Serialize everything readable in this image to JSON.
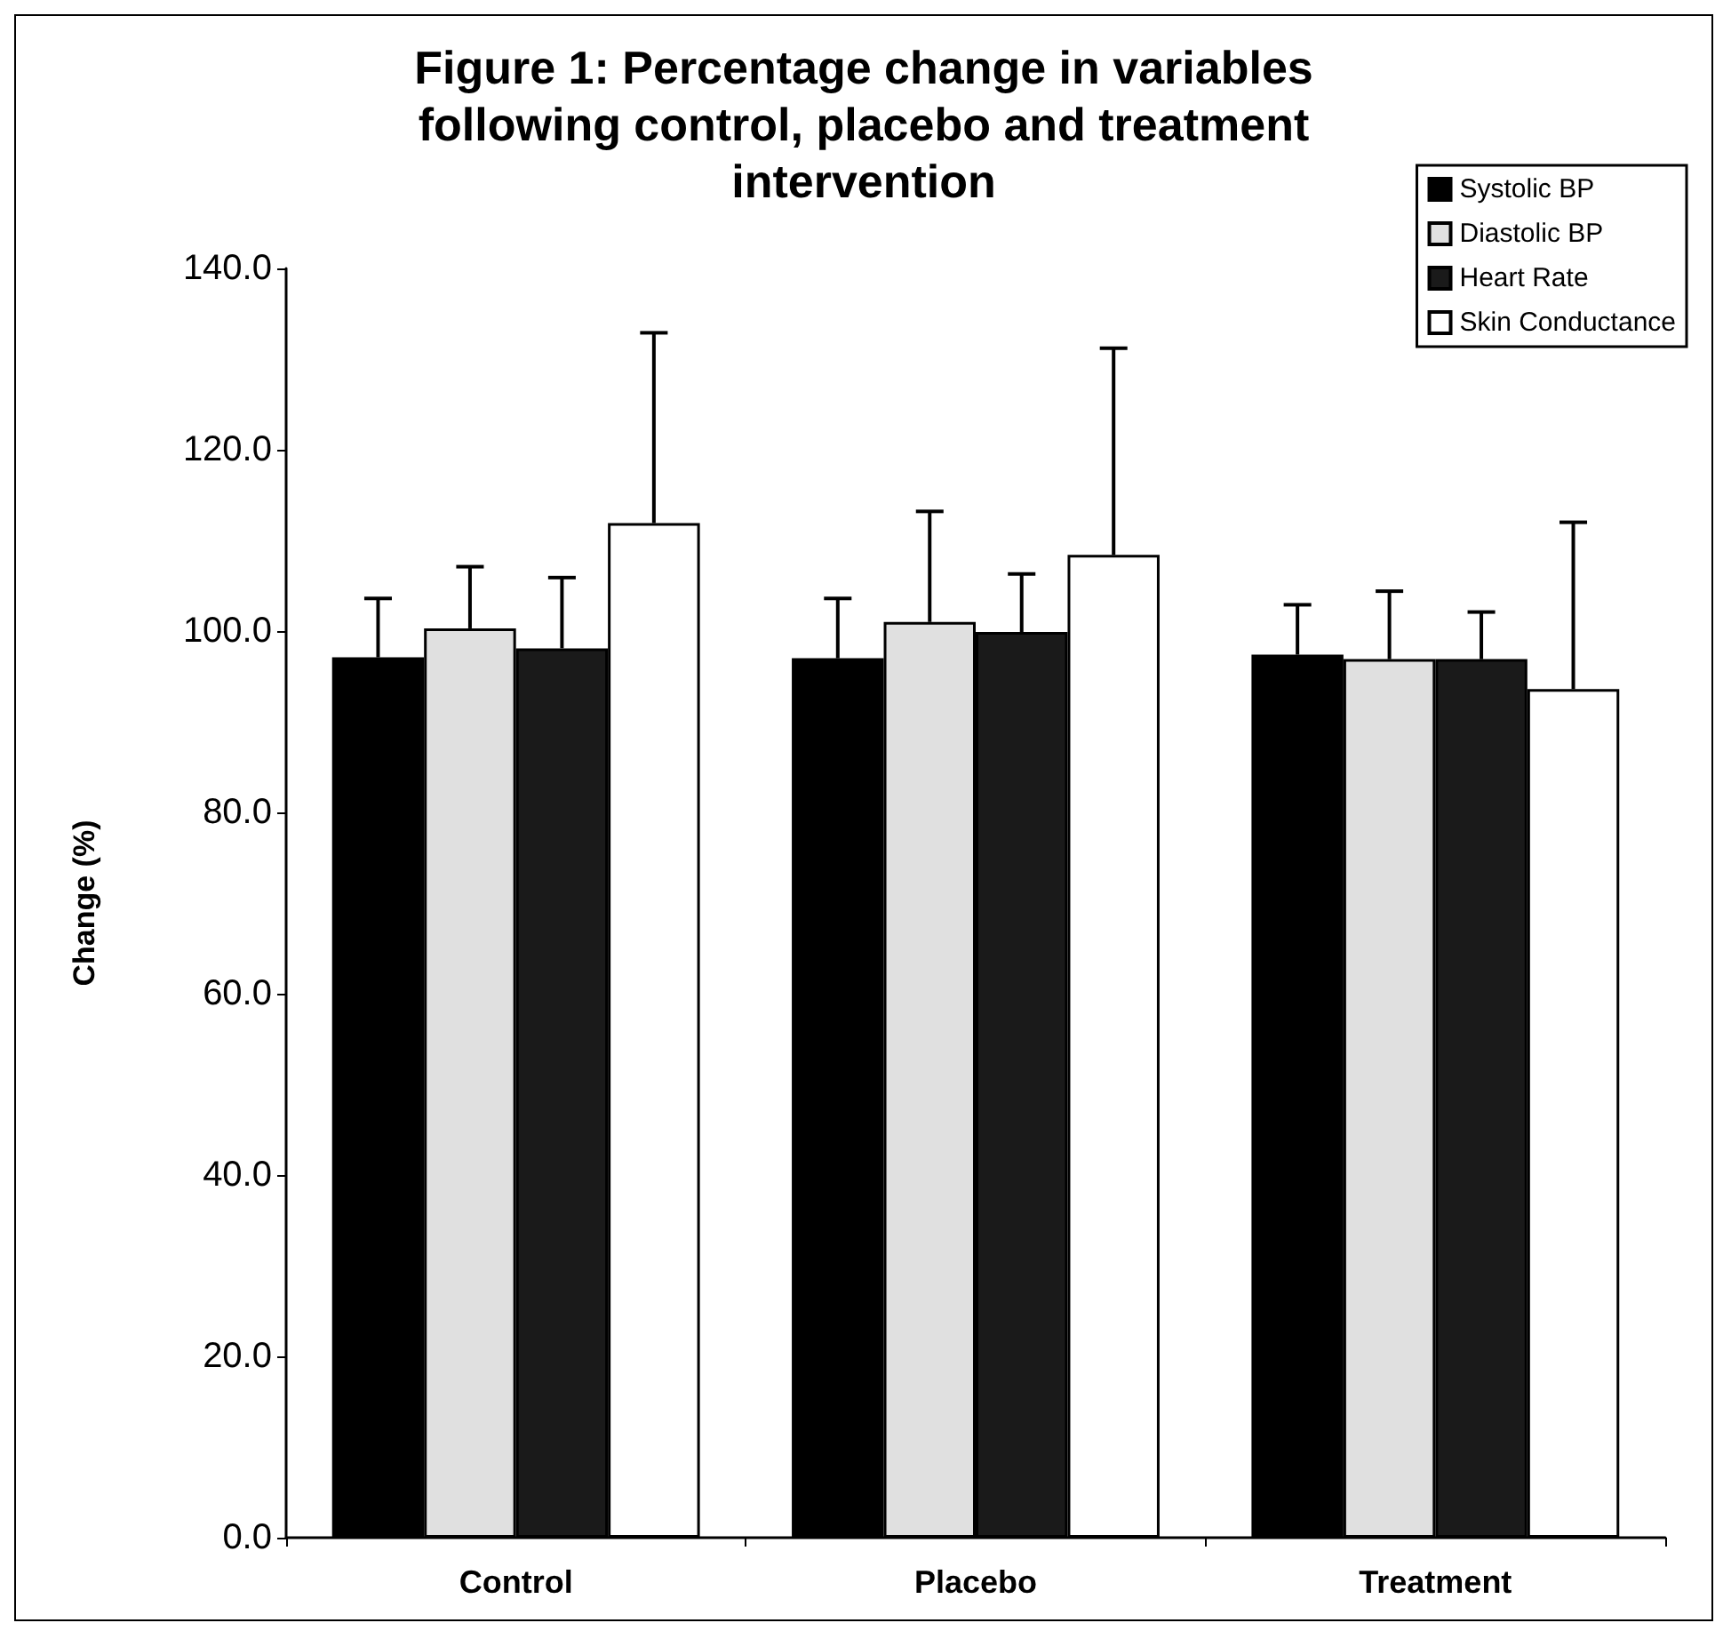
{
  "chart_data": {
    "type": "bar",
    "title": "Figure 1: Percentage change in variables\nfollowing control, placebo and treatment\nintervention",
    "ylabel": "Change (%)",
    "categories": [
      "Control",
      "Placebo",
      "Treatment"
    ],
    "series": [
      {
        "name": "Systolic BP",
        "color": "#000000",
        "values": [
          97.1,
          97.0,
          97.4
        ],
        "errors": [
          [
            97.1,
            103.6
          ],
          [
            97.0,
            103.6
          ],
          [
            97.4,
            102.9
          ]
        ]
      },
      {
        "name": "Diastolic BP",
        "color": "#e0e0e0",
        "values": [
          100.3,
          101.0,
          96.9
        ],
        "errors": [
          [
            100.3,
            107.1
          ],
          [
            101.0,
            113.2
          ],
          [
            96.9,
            104.4
          ]
        ]
      },
      {
        "name": "Heart Rate",
        "color": "#1a1a1a",
        "values": [
          98.1,
          99.9,
          96.9
        ],
        "errors": [
          [
            98.1,
            105.9
          ],
          [
            99.9,
            106.3
          ],
          [
            96.9,
            102.1
          ]
        ]
      },
      {
        "name": "Skin Conductance",
        "color": "#ffffff",
        "values": [
          111.9,
          108.4,
          93.6
        ],
        "errors": [
          [
            111.9,
            132.9
          ],
          [
            108.4,
            131.2
          ],
          [
            93.6,
            112.0
          ]
        ]
      }
    ],
    "ylim": [
      0,
      140
    ],
    "yticks": [
      {
        "value": 0,
        "label": "0.0"
      },
      {
        "value": 20,
        "label": "20.0"
      },
      {
        "value": 40,
        "label": "40.0"
      },
      {
        "value": 60,
        "label": "60.0"
      },
      {
        "value": 80,
        "label": "80.0"
      },
      {
        "value": 100,
        "label": "100.0"
      },
      {
        "value": 120,
        "label": "120.0"
      },
      {
        "value": 140,
        "label": "140.0"
      }
    ],
    "grid": false,
    "legend": "top right"
  }
}
